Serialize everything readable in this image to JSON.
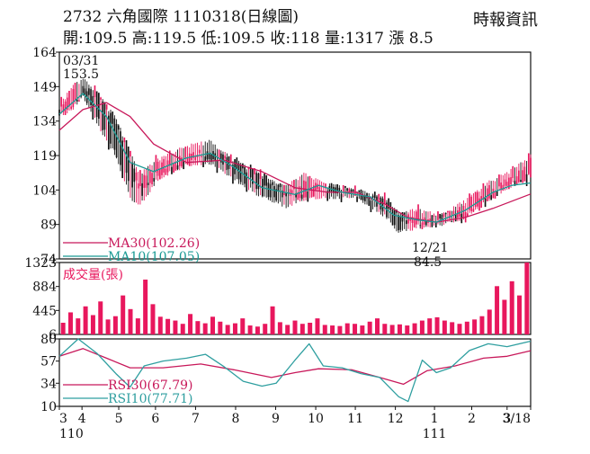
{
  "header": {
    "title": "2732  六角國際 1110318(日線圖)",
    "source": "時報資訊",
    "quote": "開:109.5 高:119.5 低:109.5 收:118 量:1317 漲 8.5"
  },
  "colors": {
    "up": "#e8175d",
    "down": "#111111",
    "ma30": "#c8185a",
    "ma10": "#1a9a94",
    "rsi30": "#c8185a",
    "rsi10": "#2f9fa0",
    "volume": "#e8175d",
    "frame": "#111111"
  },
  "chart_data": [
    {
      "type": "candlestick",
      "name": "price",
      "ylim": [
        74,
        164
      ],
      "yticks": [
        164,
        149,
        134,
        119,
        104,
        89,
        74
      ],
      "legend": [
        {
          "label": "MA30(102.26)",
          "color": "#c8185a"
        },
        {
          "label": "MA10(107.05)",
          "color": "#1a9a94"
        }
      ],
      "annotations": [
        {
          "date": "03/31",
          "value": "153.5"
        },
        {
          "date": "12/21",
          "value": "84.5"
        }
      ],
      "ohlc_sampled": [
        {
          "t": 0.0,
          "o": 138,
          "h": 142,
          "l": 135,
          "c": 140
        },
        {
          "t": 0.03,
          "o": 140,
          "h": 150,
          "l": 139,
          "c": 148
        },
        {
          "t": 0.05,
          "o": 148,
          "h": 153.5,
          "l": 144,
          "c": 146
        },
        {
          "t": 0.08,
          "o": 146,
          "h": 147,
          "l": 132,
          "c": 134
        },
        {
          "t": 0.12,
          "o": 134,
          "h": 136,
          "l": 118,
          "c": 120
        },
        {
          "t": 0.15,
          "o": 120,
          "h": 121,
          "l": 100,
          "c": 104
        },
        {
          "t": 0.17,
          "o": 104,
          "h": 112,
          "l": 96,
          "c": 110
        },
        {
          "t": 0.21,
          "o": 110,
          "h": 118,
          "l": 108,
          "c": 116
        },
        {
          "t": 0.27,
          "o": 116,
          "h": 124,
          "l": 114,
          "c": 120
        },
        {
          "t": 0.32,
          "o": 120,
          "h": 126,
          "l": 115,
          "c": 117
        },
        {
          "t": 0.37,
          "o": 117,
          "h": 118,
          "l": 108,
          "c": 110
        },
        {
          "t": 0.43,
          "o": 110,
          "h": 111,
          "l": 100,
          "c": 103
        },
        {
          "t": 0.48,
          "o": 103,
          "h": 106,
          "l": 96,
          "c": 101
        },
        {
          "t": 0.52,
          "o": 101,
          "h": 112,
          "l": 99,
          "c": 109
        },
        {
          "t": 0.57,
          "o": 106,
          "h": 107,
          "l": 100,
          "c": 103
        },
        {
          "t": 0.63,
          "o": 103,
          "h": 105,
          "l": 100,
          "c": 102
        },
        {
          "t": 0.69,
          "o": 100,
          "h": 101,
          "l": 92,
          "c": 94
        },
        {
          "t": 0.72,
          "o": 94,
          "h": 95,
          "l": 84.5,
          "c": 88
        },
        {
          "t": 0.76,
          "o": 88,
          "h": 96,
          "l": 87,
          "c": 94
        },
        {
          "t": 0.81,
          "o": 93,
          "h": 94,
          "l": 88,
          "c": 90
        },
        {
          "t": 0.86,
          "o": 92,
          "h": 100,
          "l": 91,
          "c": 98
        },
        {
          "t": 0.91,
          "o": 100,
          "h": 108,
          "l": 99,
          "c": 106
        },
        {
          "t": 0.95,
          "o": 106,
          "h": 112,
          "l": 104,
          "c": 108
        },
        {
          "t": 1.0,
          "o": 109.5,
          "h": 119.5,
          "l": 109.5,
          "c": 118
        }
      ],
      "ma30_sampled": [
        [
          0.0,
          130
        ],
        [
          0.05,
          139
        ],
        [
          0.1,
          142
        ],
        [
          0.15,
          136
        ],
        [
          0.2,
          124
        ],
        [
          0.27,
          116
        ],
        [
          0.35,
          117
        ],
        [
          0.43,
          112
        ],
        [
          0.5,
          105
        ],
        [
          0.57,
          103
        ],
        [
          0.63,
          103
        ],
        [
          0.69,
          98
        ],
        [
          0.74,
          92
        ],
        [
          0.8,
          90
        ],
        [
          0.86,
          92
        ],
        [
          0.92,
          96
        ],
        [
          1.0,
          102.26
        ]
      ],
      "ma10_sampled": [
        [
          0.0,
          137
        ],
        [
          0.05,
          146
        ],
        [
          0.1,
          136
        ],
        [
          0.15,
          116
        ],
        [
          0.2,
          112
        ],
        [
          0.27,
          118
        ],
        [
          0.32,
          120
        ],
        [
          0.37,
          114
        ],
        [
          0.43,
          105
        ],
        [
          0.5,
          102
        ],
        [
          0.55,
          106
        ],
        [
          0.6,
          103
        ],
        [
          0.66,
          101
        ],
        [
          0.71,
          93
        ],
        [
          0.76,
          91
        ],
        [
          0.8,
          90
        ],
        [
          0.86,
          95
        ],
        [
          0.92,
          103
        ],
        [
          0.96,
          106
        ],
        [
          1.0,
          107.05
        ]
      ]
    },
    {
      "type": "bar",
      "name": "volume",
      "title": "成交量(張)",
      "ylim": [
        6,
        1323
      ],
      "yticks": [
        1323,
        884,
        445,
        6
      ],
      "values_sampled": [
        220,
        410,
        300,
        520,
        360,
        610,
        280,
        340,
        720,
        470,
        300,
        1010,
        560,
        330,
        290,
        260,
        200,
        380,
        250,
        210,
        330,
        240,
        180,
        210,
        300,
        170,
        150,
        200,
        520,
        230,
        180,
        260,
        200,
        220,
        300,
        180,
        170,
        160,
        210,
        200,
        170,
        240,
        300,
        200,
        180,
        190,
        170,
        210,
        260,
        300,
        320,
        260,
        230,
        200,
        240,
        280,
        340,
        460,
        890,
        640,
        980,
        720,
        1323
      ]
    },
    {
      "type": "line",
      "name": "rsi",
      "ylim": [
        10,
        80
      ],
      "yticks": [
        80,
        57,
        34,
        10
      ],
      "legend": [
        {
          "label": "RSI30(67.79)",
          "color": "#c8185a"
        },
        {
          "label": "RSI10(77.71)",
          "color": "#2f9fa0"
        }
      ],
      "rsi30_sampled": [
        [
          0.0,
          62
        ],
        [
          0.05,
          70
        ],
        [
          0.1,
          60
        ],
        [
          0.15,
          50
        ],
        [
          0.22,
          50
        ],
        [
          0.3,
          54
        ],
        [
          0.37,
          48
        ],
        [
          0.45,
          40
        ],
        [
          0.5,
          45
        ],
        [
          0.55,
          49
        ],
        [
          0.62,
          48
        ],
        [
          0.68,
          40
        ],
        [
          0.73,
          33
        ],
        [
          0.78,
          47
        ],
        [
          0.84,
          52
        ],
        [
          0.9,
          60
        ],
        [
          0.95,
          62
        ],
        [
          1.0,
          67.79
        ]
      ],
      "rsi10_sampled": [
        [
          0.0,
          62
        ],
        [
          0.04,
          80
        ],
        [
          0.08,
          65
        ],
        [
          0.12,
          44
        ],
        [
          0.15,
          30
        ],
        [
          0.18,
          52
        ],
        [
          0.22,
          57
        ],
        [
          0.27,
          60
        ],
        [
          0.31,
          64
        ],
        [
          0.35,
          51
        ],
        [
          0.39,
          36
        ],
        [
          0.43,
          31
        ],
        [
          0.46,
          34
        ],
        [
          0.5,
          58
        ],
        [
          0.53,
          75
        ],
        [
          0.56,
          52
        ],
        [
          0.6,
          50
        ],
        [
          0.64,
          44
        ],
        [
          0.68,
          40
        ],
        [
          0.72,
          20
        ],
        [
          0.74,
          15
        ],
        [
          0.77,
          58
        ],
        [
          0.8,
          45
        ],
        [
          0.83,
          50
        ],
        [
          0.87,
          68
        ],
        [
          0.91,
          75
        ],
        [
          0.95,
          72
        ],
        [
          1.0,
          77.71
        ]
      ]
    }
  ],
  "x_axis": {
    "month_labels": [
      {
        "label": "3",
        "t": 0.0
      },
      {
        "label": "4",
        "t": 0.048
      },
      {
        "label": "5",
        "t": 0.126
      },
      {
        "label": "6",
        "t": 0.204
      },
      {
        "label": "7",
        "t": 0.289
      },
      {
        "label": "8",
        "t": 0.374
      },
      {
        "label": "9",
        "t": 0.459
      },
      {
        "label": "10",
        "t": 0.544
      },
      {
        "label": "11",
        "t": 0.628
      },
      {
        "label": "12",
        "t": 0.713
      },
      {
        "label": "1",
        "t": 0.796
      },
      {
        "label": "2",
        "t": 0.875
      },
      {
        "label": "3",
        "t": 0.95
      },
      {
        "label": "3/18",
        "t": 1.0
      }
    ],
    "year_labels": [
      {
        "label": "110",
        "t": 0.0
      },
      {
        "label": "111",
        "t": 0.796
      }
    ]
  }
}
